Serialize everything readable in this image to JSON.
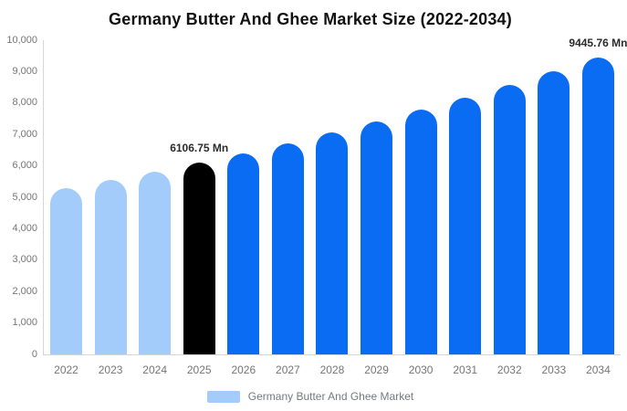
{
  "header": {
    "title": "Germany Butter And Ghee Market Size (2022-2034)"
  },
  "legend": {
    "label": "Germany Butter And Ghee Market",
    "swatch_color": "#a3ccfa"
  },
  "colors": {
    "historical_bar": "#a3ccfa",
    "base_year_bar": "#000000",
    "forecast_bar": "#0a6cf2",
    "axis_line": "#d6d6d6",
    "tick_text": "#757575",
    "title_text": "#111111",
    "value_label_text": "#2b2b2b"
  },
  "chart_data": {
    "type": "bar",
    "title": "Germany Butter And Ghee Market Size (2022-2034)",
    "xlabel": "",
    "ylabel": "",
    "unit": "Mn",
    "ylim": [
      0,
      10000
    ],
    "y_tick_step": 1000,
    "y_tick_labels": [
      "0",
      "1,000",
      "2,000",
      "3,000",
      "4,000",
      "5,000",
      "6,000",
      "7,000",
      "8,000",
      "9,000",
      "10,000"
    ],
    "grid": false,
    "legend_position": "bottom",
    "categories": [
      "2022",
      "2023",
      "2024",
      "2025",
      "2026",
      "2027",
      "2028",
      "2029",
      "2030",
      "2031",
      "2032",
      "2033",
      "2034"
    ],
    "bars": [
      {
        "year": "2022",
        "value": 5280,
        "color": "#a3ccfa",
        "label": ""
      },
      {
        "year": "2023",
        "value": 5543,
        "color": "#a3ccfa",
        "label": ""
      },
      {
        "year": "2024",
        "value": 5818,
        "color": "#a3ccfa",
        "label": ""
      },
      {
        "year": "2025",
        "value": 6106.75,
        "color": "#000000",
        "label": "6106.75 Mn"
      },
      {
        "year": "2026",
        "value": 6410,
        "color": "#0a6cf2",
        "label": ""
      },
      {
        "year": "2027",
        "value": 6728,
        "color": "#0a6cf2",
        "label": ""
      },
      {
        "year": "2028",
        "value": 7062,
        "color": "#0a6cf2",
        "label": ""
      },
      {
        "year": "2029",
        "value": 7413,
        "color": "#0a6cf2",
        "label": ""
      },
      {
        "year": "2030",
        "value": 7781,
        "color": "#0a6cf2",
        "label": ""
      },
      {
        "year": "2031",
        "value": 8168,
        "color": "#0a6cf2",
        "label": ""
      },
      {
        "year": "2032",
        "value": 8573,
        "color": "#0a6cf2",
        "label": ""
      },
      {
        "year": "2033",
        "value": 8999,
        "color": "#0a6cf2",
        "label": ""
      },
      {
        "year": "2034",
        "value": 9445.76,
        "color": "#0a6cf2",
        "label": "9445.76 Mn"
      }
    ]
  }
}
